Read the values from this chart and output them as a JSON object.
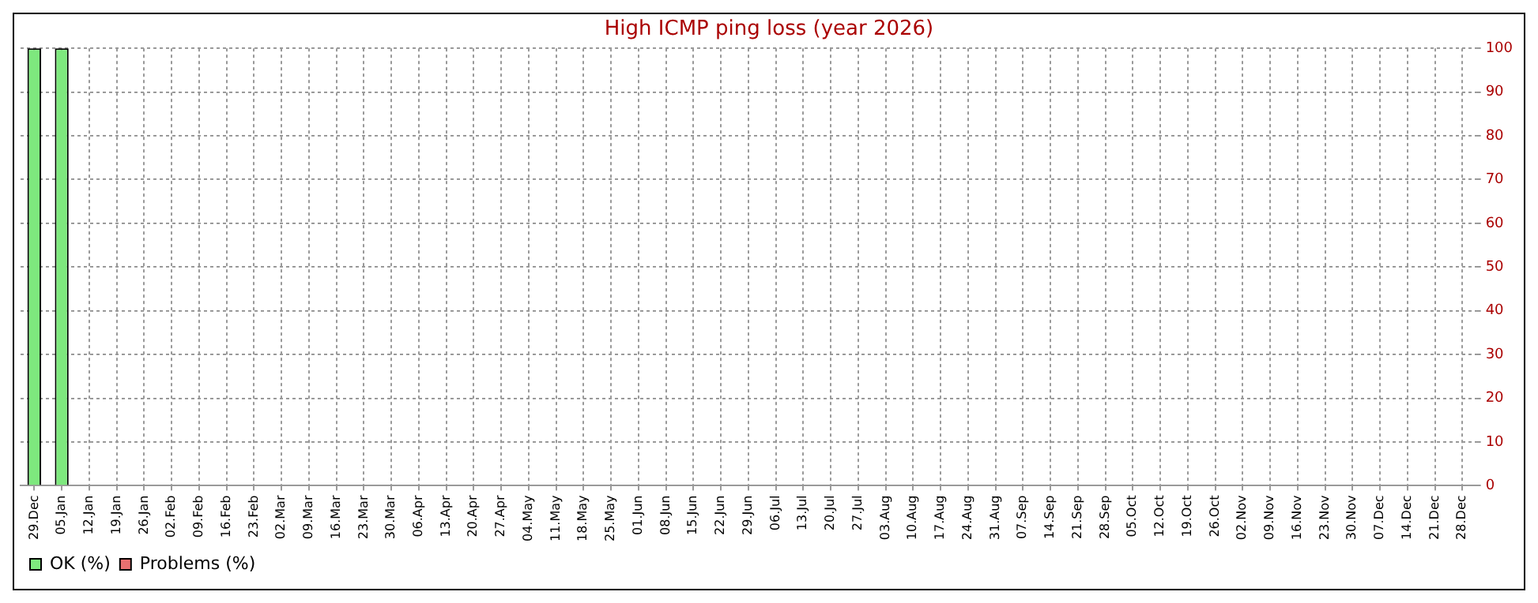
{
  "chart_data": {
    "type": "bar",
    "title": "High ICMP ping loss (year 2026)",
    "categories": [
      "29.Dec",
      "05.Jan",
      "12.Jan",
      "19.Jan",
      "26.Jan",
      "02.Feb",
      "09.Feb",
      "16.Feb",
      "23.Feb",
      "02.Mar",
      "09.Mar",
      "16.Mar",
      "23.Mar",
      "30.Mar",
      "06.Apr",
      "13.Apr",
      "20.Apr",
      "27.Apr",
      "04.May",
      "11.May",
      "18.May",
      "25.May",
      "01.Jun",
      "08.Jun",
      "15.Jun",
      "22.Jun",
      "29.Jun",
      "06.Jul",
      "13.Jul",
      "20.Jul",
      "27.Jul",
      "03.Aug",
      "10.Aug",
      "17.Aug",
      "24.Aug",
      "31.Aug",
      "07.Sep",
      "14.Sep",
      "21.Sep",
      "28.Sep",
      "05.Oct",
      "12.Oct",
      "19.Oct",
      "26.Oct",
      "02.Nov",
      "09.Nov",
      "16.Nov",
      "23.Nov",
      "30.Nov",
      "07.Dec",
      "14.Dec",
      "21.Dec",
      "28.Dec"
    ],
    "series": [
      {
        "name": "OK (%)",
        "color": "#7ee87e",
        "values": [
          100,
          100,
          null,
          null,
          null,
          null,
          null,
          null,
          null,
          null,
          null,
          null,
          null,
          null,
          null,
          null,
          null,
          null,
          null,
          null,
          null,
          null,
          null,
          null,
          null,
          null,
          null,
          null,
          null,
          null,
          null,
          null,
          null,
          null,
          null,
          null,
          null,
          null,
          null,
          null,
          null,
          null,
          null,
          null,
          null,
          null,
          null,
          null,
          null,
          null,
          null,
          null,
          null
        ]
      },
      {
        "name": "Problems (%)",
        "color": "#e87070",
        "values": [
          0,
          0,
          null,
          null,
          null,
          null,
          null,
          null,
          null,
          null,
          null,
          null,
          null,
          null,
          null,
          null,
          null,
          null,
          null,
          null,
          null,
          null,
          null,
          null,
          null,
          null,
          null,
          null,
          null,
          null,
          null,
          null,
          null,
          null,
          null,
          null,
          null,
          null,
          null,
          null,
          null,
          null,
          null,
          null,
          null,
          null,
          null,
          null,
          null,
          null,
          null,
          null,
          null
        ]
      }
    ],
    "stacked": true,
    "ylim": [
      0,
      100
    ],
    "yticks": [
      0,
      10,
      20,
      30,
      40,
      50,
      60,
      70,
      80,
      90,
      100
    ],
    "grid": true,
    "legend": "bottom left"
  }
}
